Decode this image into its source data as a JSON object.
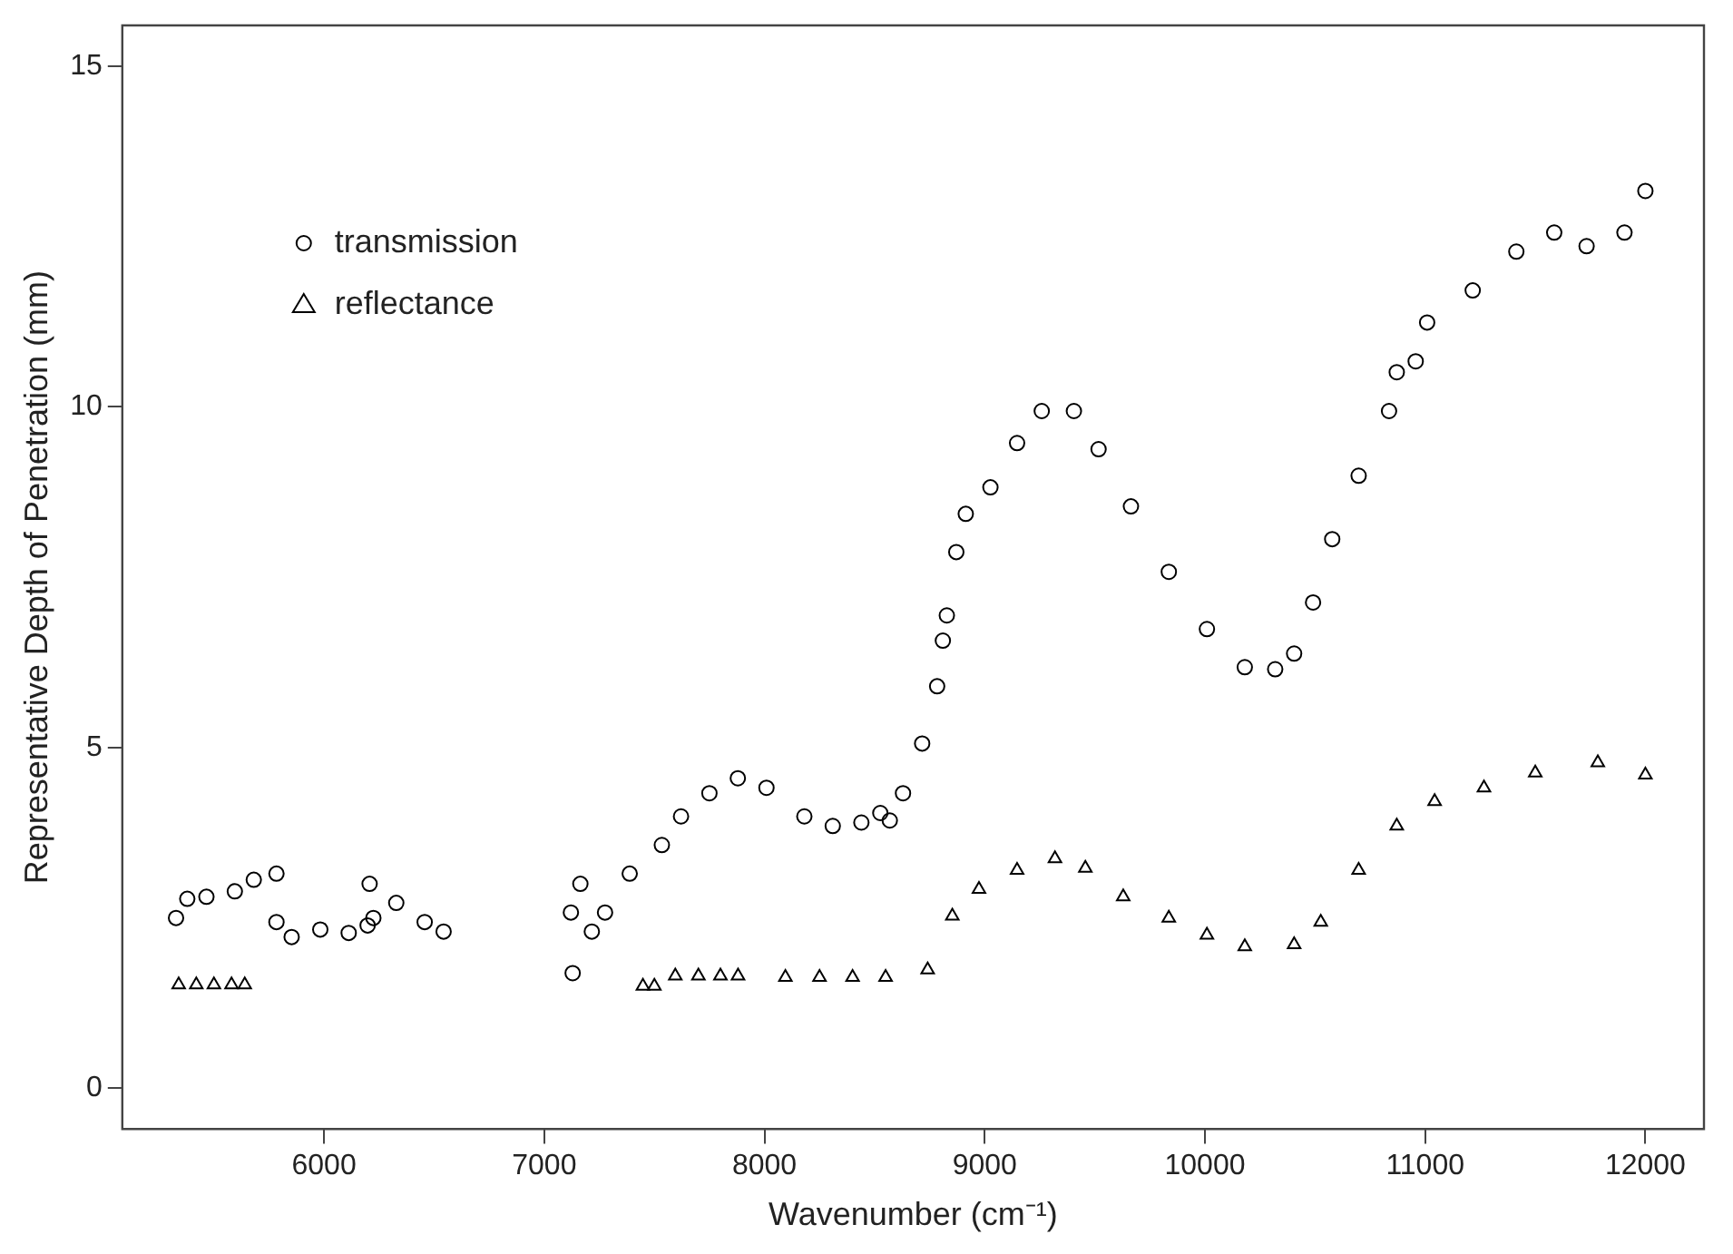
{
  "chart_data": {
    "type": "scatter",
    "xlabel": "Wavenumber (cm⁻¹)",
    "ylabel": "Representative Depth of Penetration (mm)",
    "xlim": [
      5084,
      12266
    ],
    "ylim": [
      -0.6,
      15.6
    ],
    "xticks": [
      6000,
      7000,
      8000,
      9000,
      10000,
      11000,
      12000
    ],
    "yticks": [
      0,
      5,
      10,
      15
    ],
    "grid": false,
    "legend": "top left",
    "series": [
      {
        "name": "transmission",
        "color": "#000000",
        "marker": "circle",
        "x": [
          5328,
          5379,
          5466,
          5595,
          5681,
          5784,
          5784,
          5853,
          5983,
          6112,
          6198,
          6224,
          6207,
          6328,
          6457,
          6543,
          7129,
          7121,
          7164,
          7216,
          7276,
          7388,
          7534,
          7621,
          7750,
          7879,
          8009,
          8181,
          8310,
          8440,
          8526,
          8569,
          8629,
          8716,
          8784,
          8810,
          8828,
          8871,
          8914,
          9026,
          9147,
          9259,
          9405,
          9517,
          9664,
          9836,
          10009,
          10181,
          10319,
          10405,
          10491,
          10578,
          10698,
          10836,
          10871,
          10957,
          11009,
          11216,
          11414,
          11586,
          11733,
          11905,
          12000
        ],
        "values": [
          2.5,
          2.78,
          2.81,
          2.89,
          3.06,
          3.15,
          2.44,
          2.22,
          2.33,
          2.28,
          2.39,
          2.5,
          3.0,
          2.72,
          2.44,
          2.3,
          1.69,
          2.58,
          3.0,
          2.3,
          2.58,
          3.15,
          3.57,
          3.99,
          4.33,
          4.55,
          4.41,
          3.99,
          3.85,
          3.9,
          4.04,
          3.93,
          4.33,
          5.06,
          5.9,
          6.57,
          6.94,
          7.87,
          8.43,
          8.82,
          9.47,
          9.94,
          9.94,
          9.38,
          8.54,
          7.58,
          6.74,
          6.18,
          6.15,
          6.38,
          7.13,
          8.06,
          8.99,
          9.94,
          10.51,
          10.67,
          11.24,
          11.71,
          12.28,
          12.56,
          12.36,
          12.56,
          13.17
        ]
      },
      {
        "name": "reflectance",
        "color": "#000000",
        "marker": "triangle",
        "x": [
          5340,
          5420,
          5500,
          5580,
          5640,
          7448,
          7500,
          7595,
          7700,
          7800,
          7880,
          8095,
          8250,
          8400,
          8550,
          8741,
          8853,
          8974,
          9147,
          9319,
          9457,
          9629,
          9836,
          10009,
          10181,
          10405,
          10526,
          10698,
          10871,
          11043,
          11267,
          11500,
          11784,
          12000
        ],
        "values": [
          1.52,
          1.52,
          1.52,
          1.52,
          1.52,
          1.5,
          1.5,
          1.65,
          1.65,
          1.65,
          1.65,
          1.63,
          1.63,
          1.63,
          1.63,
          1.74,
          2.53,
          2.92,
          3.2,
          3.37,
          3.23,
          2.81,
          2.5,
          2.25,
          2.08,
          2.11,
          2.44,
          3.2,
          3.85,
          4.21,
          4.41,
          4.63,
          4.78,
          4.6
        ]
      }
    ]
  }
}
